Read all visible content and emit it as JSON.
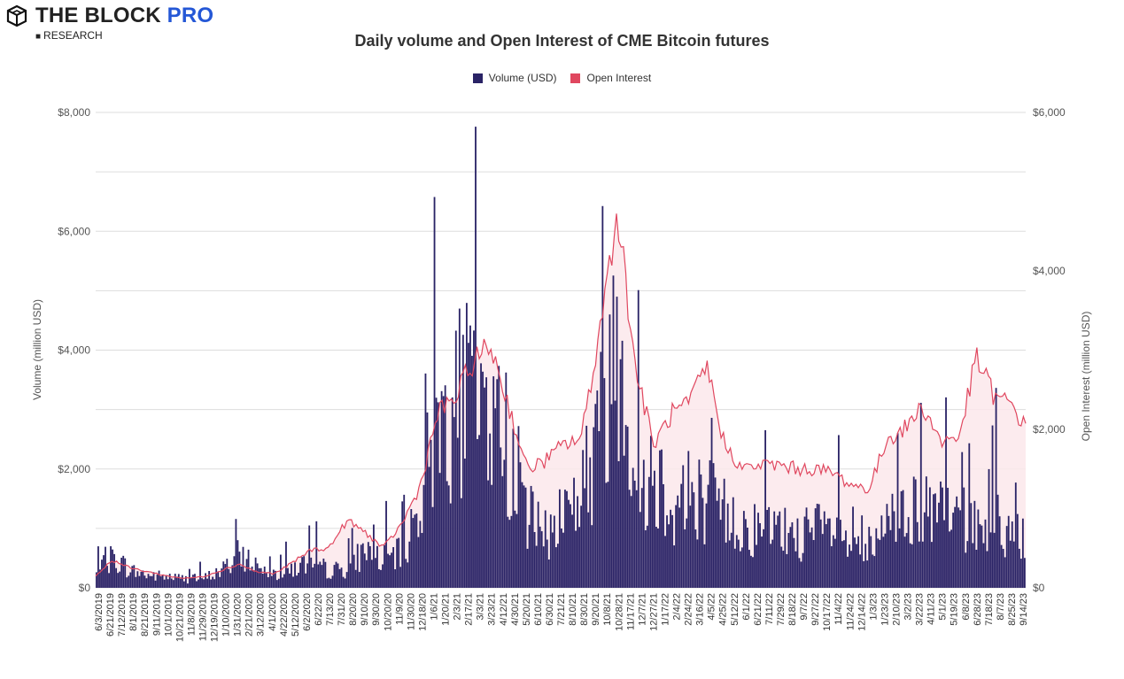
{
  "brand": {
    "name_main": "THE BLOCK",
    "name_accent": "PRO",
    "sub": "RESEARCH",
    "logo_icon": "box-cube-icon"
  },
  "colors": {
    "volume": "#2a2366",
    "open_interest": "#e0475f",
    "oi_fill": "#fbe8eb",
    "grid": "#dddddd",
    "brand_accent": "#2457d6"
  },
  "chart_data": {
    "type": "bar",
    "title": "Daily volume and Open Interest of CME Bitcoin futures",
    "legend_position": "top-center",
    "grid": true,
    "y_left": {
      "label": "Volume (million USD)",
      "range": [
        0,
        8000
      ],
      "ticks": [
        "$0",
        "$2,000",
        "$4,000",
        "$6,000",
        "$8,000"
      ]
    },
    "y_right": {
      "label": "Open Interest (million USD)",
      "range": [
        0,
        6000
      ],
      "ticks": [
        "$0",
        "$2,000",
        "$4,000",
        "$6,000"
      ]
    },
    "x_tick_labels": [
      "6/3/2019",
      "6/21/2019",
      "7/12/2019",
      "8/1/2019",
      "8/21/2019",
      "9/11/2019",
      "10/1/2019",
      "10/21/2019",
      "11/8/2019",
      "11/29/2019",
      "12/19/2019",
      "1/10/2020",
      "1/31/2020",
      "2/21/2020",
      "3/12/2020",
      "4/1/2020",
      "4/22/2020",
      "5/12/2020",
      "6/2/2020",
      "6/22/20",
      "7/13/20",
      "7/31/20",
      "8/20/20",
      "9/10/20",
      "9/30/20",
      "10/20/20",
      "11/9/20",
      "11/30/20",
      "12/18/20",
      "1/6/21",
      "1/20/21",
      "2/3/21",
      "2/17/21",
      "3/3/21",
      "3/23/21",
      "4/12/21",
      "4/30/21",
      "5/20/21",
      "6/10/21",
      "6/30/21",
      "7/21/21",
      "8/10/21",
      "8/30/21",
      "9/20/21",
      "10/8/21",
      "10/28/21",
      "11/17/21",
      "12/7/21",
      "12/27/21",
      "1/17/22",
      "2/4/22",
      "2/24/22",
      "3/16/22",
      "4/5/22",
      "4/25/22",
      "5/12/22",
      "6/1/22",
      "6/21/22",
      "7/11/22",
      "7/29/22",
      "8/18/22",
      "9/7/22",
      "9/27/22",
      "10/17/22",
      "11/4/22",
      "11/24/22",
      "12/14/22",
      "1/3/23",
      "1/23/23",
      "2/10/23",
      "3/2/23",
      "3/22/23",
      "4/11/23",
      "5/1/23",
      "5/19/23",
      "6/8/23",
      "6/28/23",
      "7/18/23",
      "8/7/23",
      "8/25/23",
      "9/14/23"
    ],
    "series": [
      {
        "name": "Volume (USD)",
        "type": "bar",
        "axis": "left",
        "x": [
          "6/3/2019",
          "7/1/2019",
          "8/1/2019",
          "9/1/2019",
          "10/1/2019",
          "11/1/2019",
          "12/1/2019",
          "1/1/2020",
          "2/1/2020",
          "3/1/2020",
          "4/1/2020",
          "5/1/2020",
          "6/1/2020",
          "7/1/2020",
          "8/1/2020",
          "9/1/2020",
          "10/1/2020",
          "11/1/2020",
          "12/1/2020",
          "1/1/2021",
          "2/1/2021",
          "3/1/2021",
          "4/1/2021",
          "5/1/2021",
          "6/1/2021",
          "7/1/2021",
          "8/1/2021",
          "9/1/2021",
          "10/1/2021",
          "11/1/2021",
          "12/1/2021",
          "1/1/2022",
          "2/1/2022",
          "3/1/2022",
          "4/1/2022",
          "5/1/2022",
          "6/1/2022",
          "7/1/2022",
          "8/1/2022",
          "9/1/2022",
          "10/1/2022",
          "11/1/2022",
          "12/1/2022",
          "1/1/2023",
          "2/1/2023",
          "3/1/2023",
          "4/1/2023",
          "5/1/2023",
          "6/1/2023",
          "7/1/2023",
          "8/1/2023",
          "9/1/2023",
          "9/22/2023"
        ],
        "values": [
          250,
          550,
          300,
          220,
          200,
          160,
          170,
          300,
          600,
          400,
          250,
          350,
          450,
          300,
          350,
          700,
          500,
          600,
          1500,
          3000,
          3200,
          3500,
          3000,
          2500,
          1300,
          900,
          1400,
          1700,
          2800,
          4800,
          1900,
          2100,
          1500,
          1700,
          1600,
          1300,
          1100,
          1000,
          1000,
          950,
          1000,
          1000,
          700,
          600,
          1100,
          1500,
          1300,
          1300,
          1200,
          1100,
          1200,
          900,
          1000
        ]
      },
      {
        "name": "Open Interest",
        "type": "line",
        "axis": "right",
        "x": [
          "6/3/2019",
          "7/1/2019",
          "8/1/2019",
          "9/1/2019",
          "10/1/2019",
          "11/1/2019",
          "12/1/2019",
          "1/1/2020",
          "2/1/2020",
          "3/1/2020",
          "4/1/2020",
          "5/1/2020",
          "6/1/2020",
          "7/1/2020",
          "8/1/2020",
          "9/1/2020",
          "10/1/2020",
          "11/1/2020",
          "12/1/2020",
          "1/1/2021",
          "2/1/2021",
          "3/1/2021",
          "4/1/2021",
          "5/1/2021",
          "6/1/2021",
          "7/1/2021",
          "8/1/2021",
          "9/1/2021",
          "10/1/2021",
          "11/1/2021",
          "12/1/2021",
          "1/1/2022",
          "2/1/2022",
          "3/1/2022",
          "4/1/2022",
          "5/1/2022",
          "6/1/2022",
          "7/1/2022",
          "8/1/2022",
          "9/1/2022",
          "10/1/2022",
          "11/1/2022",
          "12/1/2022",
          "1/1/2023",
          "2/1/2023",
          "3/1/2023",
          "4/1/2023",
          "5/1/2023",
          "6/1/2023",
          "7/1/2023",
          "8/1/2023",
          "9/1/2023",
          "9/22/2023"
        ],
        "values": [
          150,
          350,
          250,
          200,
          150,
          120,
          140,
          220,
          300,
          200,
          180,
          320,
          480,
          500,
          850,
          700,
          500,
          800,
          1250,
          2200,
          2400,
          2850,
          3050,
          2300,
          1500,
          1600,
          1800,
          1900,
          3200,
          4800,
          2800,
          1800,
          2200,
          2300,
          2800,
          1800,
          1500,
          1550,
          1550,
          1500,
          1500,
          1450,
          1300,
          1250,
          1900,
          2000,
          2300,
          1850,
          1900,
          2900,
          2400,
          2300,
          2000
        ]
      }
    ]
  }
}
